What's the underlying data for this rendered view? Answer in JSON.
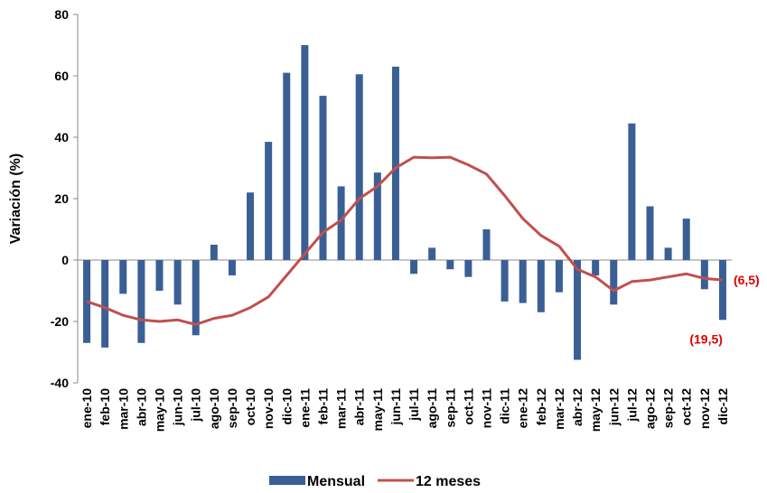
{
  "chart_data": {
    "type": "bar_line",
    "y_label": "Variación (%)",
    "categories": [
      "ene-10",
      "feb-10",
      "mar-10",
      "abr-10",
      "may-10",
      "jun-10",
      "jul-10",
      "ago-10",
      "sep-10",
      "oct-10",
      "nov-10",
      "dic-10",
      "ene-11",
      "feb-11",
      "mar-11",
      "abr-11",
      "may-11",
      "jun-11",
      "jul-11",
      "ago-11",
      "sep-11",
      "oct-11",
      "nov-11",
      "dic-11",
      "ene-12",
      "feb-12",
      "mar-12",
      "abr-12",
      "may-12",
      "jun-12",
      "jul-12",
      "ago-12",
      "sep-12",
      "oct-12",
      "nov-12",
      "dic-12"
    ],
    "series": [
      {
        "name": "Mensual",
        "type": "bar",
        "color": "#3a5f95",
        "values": [
          -27,
          -28.5,
          -11,
          -27,
          -10,
          -14.5,
          -24.5,
          5,
          -5,
          22,
          38.5,
          61,
          70,
          53.5,
          24,
          60.5,
          28.5,
          63,
          -4.5,
          4,
          -3,
          -5.5,
          10,
          -13.5,
          -14,
          -17,
          -10.5,
          -32.5,
          -5,
          -14.5,
          44.5,
          17.5,
          4,
          13.5,
          -9.5,
          -19.5
        ],
        "value_labels": [
          null,
          null,
          null,
          null,
          null,
          null,
          null,
          null,
          null,
          null,
          null,
          null,
          null,
          null,
          null,
          null,
          null,
          null,
          null,
          null,
          null,
          null,
          null,
          null,
          null,
          null,
          null,
          null,
          null,
          null,
          null,
          null,
          null,
          null,
          null,
          "(19,5)"
        ]
      },
      {
        "name": "12 meses",
        "type": "line",
        "color": "#c0504d",
        "values": [
          -13.5,
          -15.5,
          -18,
          -19.5,
          -20,
          -19.5,
          -21,
          -19,
          -18,
          -15.5,
          -12,
          -5,
          2,
          9,
          13,
          20,
          24,
          30,
          33.5,
          33.3,
          33.5,
          31,
          28,
          21,
          13.5,
          8,
          4.5,
          -3,
          -5.5,
          -10,
          -7,
          -6.5,
          -5.5,
          -4.5,
          -6,
          -6.5
        ],
        "value_labels": [
          null,
          null,
          null,
          null,
          null,
          null,
          null,
          null,
          null,
          null,
          null,
          null,
          null,
          null,
          null,
          null,
          null,
          null,
          null,
          null,
          null,
          null,
          null,
          null,
          null,
          null,
          null,
          null,
          null,
          null,
          null,
          null,
          null,
          null,
          null,
          "(6,5)"
        ]
      }
    ],
    "ylim": [
      -40,
      80
    ],
    "yticks": [
      -40,
      -20,
      0,
      20,
      40,
      60,
      80
    ],
    "label_color": "#e00000",
    "legend": "bottom"
  }
}
